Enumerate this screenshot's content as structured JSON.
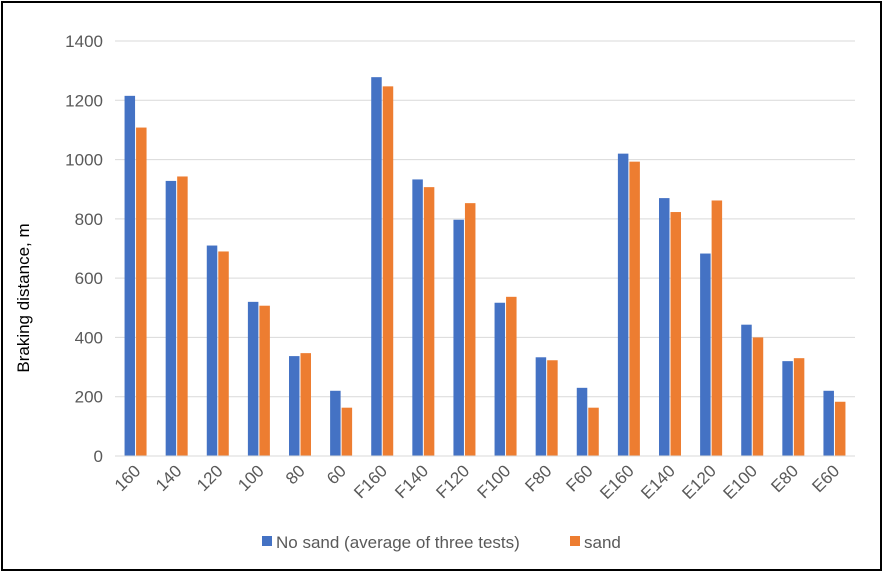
{
  "chart_data": {
    "type": "bar",
    "title": "",
    "xlabel": "",
    "ylabel": "Braking distance, m",
    "ylim": [
      0,
      1400
    ],
    "yticks": [
      0,
      200,
      400,
      600,
      800,
      1000,
      1200,
      1400
    ],
    "grid": true,
    "legend_position": "bottom",
    "categories": [
      "160",
      "140",
      "120",
      "100",
      "80",
      "60",
      "F160",
      "F140",
      "F120",
      "F100",
      "F80",
      "F60",
      "E160",
      "E140",
      "E120",
      "E100",
      "E80",
      "E60"
    ],
    "series": [
      {
        "name": "No sand (average of three tests)",
        "color": "#4472C4",
        "values": [
          1215,
          928,
          710,
          520,
          337,
          220,
          1278,
          933,
          797,
          517,
          333,
          230,
          1020,
          870,
          683,
          443,
          320,
          220
        ]
      },
      {
        "name": "sand",
        "color": "#ED7D31",
        "values": [
          1108,
          943,
          690,
          507,
          347,
          163,
          1247,
          907,
          853,
          537,
          323,
          163,
          993,
          823,
          862,
          400,
          330,
          183
        ]
      }
    ]
  }
}
